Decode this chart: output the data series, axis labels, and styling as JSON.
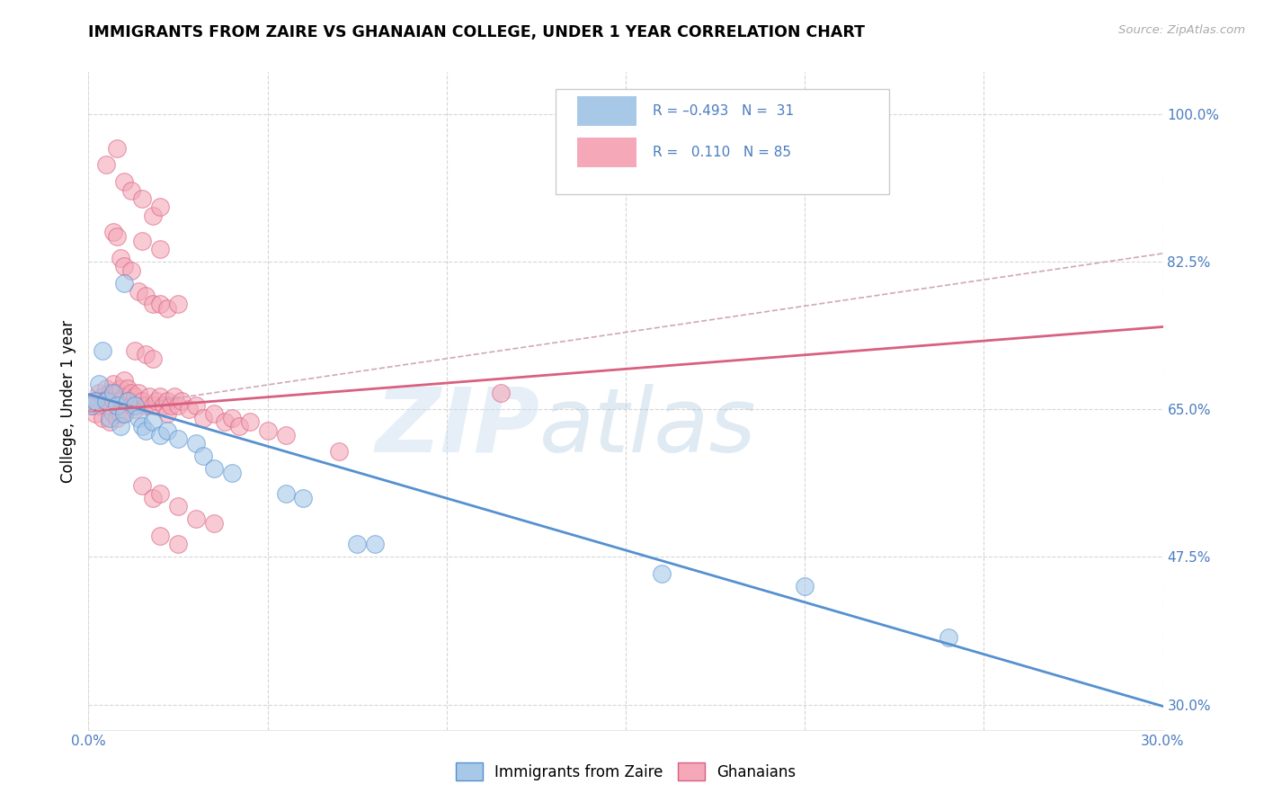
{
  "title": "IMMIGRANTS FROM ZAIRE VS GHANAIAN COLLEGE, UNDER 1 YEAR CORRELATION CHART",
  "source": "Source: ZipAtlas.com",
  "ylabel": "College, Under 1 year",
  "xmin": 0.0,
  "xmax": 0.3,
  "ymin": 0.27,
  "ymax": 1.05,
  "yticks": [
    0.3,
    0.475,
    0.65,
    0.825,
    1.0
  ],
  "ytick_labels": [
    "30.0%",
    "47.5%",
    "65.0%",
    "82.5%",
    "100.0%"
  ],
  "xticks": [
    0.0,
    0.05,
    0.1,
    0.15,
    0.2,
    0.25,
    0.3
  ],
  "xtick_labels": [
    "0.0%",
    "",
    "",
    "",
    "",
    "",
    "30.0%"
  ],
  "color_blue": "#a8c8e8",
  "color_pink": "#f4a8b8",
  "line_blue": "#5590d0",
  "line_pink": "#d86080",
  "line_dashed_color": "#d0a8b8",
  "watermark_zip": "ZIP",
  "watermark_atlas": "atlas",
  "blue_scatter": [
    [
      0.001,
      0.655
    ],
    [
      0.002,
      0.66
    ],
    [
      0.003,
      0.68
    ],
    [
      0.004,
      0.72
    ],
    [
      0.005,
      0.66
    ],
    [
      0.006,
      0.64
    ],
    [
      0.007,
      0.67
    ],
    [
      0.008,
      0.655
    ],
    [
      0.009,
      0.63
    ],
    [
      0.01,
      0.645
    ],
    [
      0.011,
      0.66
    ],
    [
      0.013,
      0.655
    ],
    [
      0.014,
      0.64
    ],
    [
      0.015,
      0.63
    ],
    [
      0.016,
      0.625
    ],
    [
      0.018,
      0.635
    ],
    [
      0.02,
      0.62
    ],
    [
      0.022,
      0.625
    ],
    [
      0.025,
      0.615
    ],
    [
      0.03,
      0.61
    ],
    [
      0.032,
      0.595
    ],
    [
      0.035,
      0.58
    ],
    [
      0.04,
      0.575
    ],
    [
      0.055,
      0.55
    ],
    [
      0.06,
      0.545
    ],
    [
      0.075,
      0.49
    ],
    [
      0.08,
      0.49
    ],
    [
      0.16,
      0.455
    ],
    [
      0.2,
      0.44
    ],
    [
      0.24,
      0.38
    ],
    [
      0.01,
      0.8
    ]
  ],
  "pink_scatter": [
    [
      0.001,
      0.655
    ],
    [
      0.002,
      0.66
    ],
    [
      0.002,
      0.645
    ],
    [
      0.003,
      0.67
    ],
    [
      0.003,
      0.655
    ],
    [
      0.004,
      0.665
    ],
    [
      0.004,
      0.64
    ],
    [
      0.005,
      0.675
    ],
    [
      0.005,
      0.655
    ],
    [
      0.006,
      0.67
    ],
    [
      0.006,
      0.655
    ],
    [
      0.006,
      0.635
    ],
    [
      0.007,
      0.68
    ],
    [
      0.007,
      0.66
    ],
    [
      0.007,
      0.645
    ],
    [
      0.008,
      0.67
    ],
    [
      0.008,
      0.655
    ],
    [
      0.008,
      0.64
    ],
    [
      0.009,
      0.675
    ],
    [
      0.009,
      0.66
    ],
    [
      0.009,
      0.645
    ],
    [
      0.01,
      0.685
    ],
    [
      0.01,
      0.665
    ],
    [
      0.01,
      0.645
    ],
    [
      0.011,
      0.675
    ],
    [
      0.011,
      0.66
    ],
    [
      0.012,
      0.67
    ],
    [
      0.012,
      0.655
    ],
    [
      0.013,
      0.665
    ],
    [
      0.013,
      0.65
    ],
    [
      0.014,
      0.67
    ],
    [
      0.015,
      0.66
    ],
    [
      0.016,
      0.655
    ],
    [
      0.017,
      0.665
    ],
    [
      0.018,
      0.655
    ],
    [
      0.019,
      0.66
    ],
    [
      0.02,
      0.665
    ],
    [
      0.021,
      0.655
    ],
    [
      0.022,
      0.66
    ],
    [
      0.022,
      0.645
    ],
    [
      0.023,
      0.655
    ],
    [
      0.024,
      0.665
    ],
    [
      0.025,
      0.655
    ],
    [
      0.026,
      0.66
    ],
    [
      0.028,
      0.65
    ],
    [
      0.03,
      0.655
    ],
    [
      0.032,
      0.64
    ],
    [
      0.035,
      0.645
    ],
    [
      0.038,
      0.635
    ],
    [
      0.04,
      0.64
    ],
    [
      0.042,
      0.63
    ],
    [
      0.045,
      0.635
    ],
    [
      0.05,
      0.625
    ],
    [
      0.055,
      0.62
    ],
    [
      0.07,
      0.6
    ],
    [
      0.005,
      0.94
    ],
    [
      0.008,
      0.96
    ],
    [
      0.01,
      0.92
    ],
    [
      0.012,
      0.91
    ],
    [
      0.015,
      0.9
    ],
    [
      0.018,
      0.88
    ],
    [
      0.02,
      0.89
    ],
    [
      0.007,
      0.86
    ],
    [
      0.008,
      0.855
    ],
    [
      0.009,
      0.83
    ],
    [
      0.01,
      0.82
    ],
    [
      0.012,
      0.815
    ],
    [
      0.014,
      0.79
    ],
    [
      0.016,
      0.785
    ],
    [
      0.018,
      0.775
    ],
    [
      0.02,
      0.775
    ],
    [
      0.022,
      0.77
    ],
    [
      0.025,
      0.775
    ],
    [
      0.015,
      0.85
    ],
    [
      0.02,
      0.84
    ],
    [
      0.013,
      0.72
    ],
    [
      0.016,
      0.715
    ],
    [
      0.018,
      0.71
    ],
    [
      0.015,
      0.56
    ],
    [
      0.018,
      0.545
    ],
    [
      0.02,
      0.55
    ],
    [
      0.025,
      0.535
    ],
    [
      0.03,
      0.52
    ],
    [
      0.035,
      0.515
    ],
    [
      0.02,
      0.5
    ],
    [
      0.025,
      0.49
    ],
    [
      0.115,
      0.67
    ]
  ],
  "blue_line_x": [
    0.0,
    0.3
  ],
  "blue_line_y": [
    0.668,
    0.298
  ],
  "pink_line_x": [
    0.0,
    0.3
  ],
  "pink_line_y": [
    0.648,
    0.748
  ],
  "dashed_line_x": [
    0.0,
    0.3
  ],
  "dashed_line_y": [
    0.648,
    0.835
  ]
}
